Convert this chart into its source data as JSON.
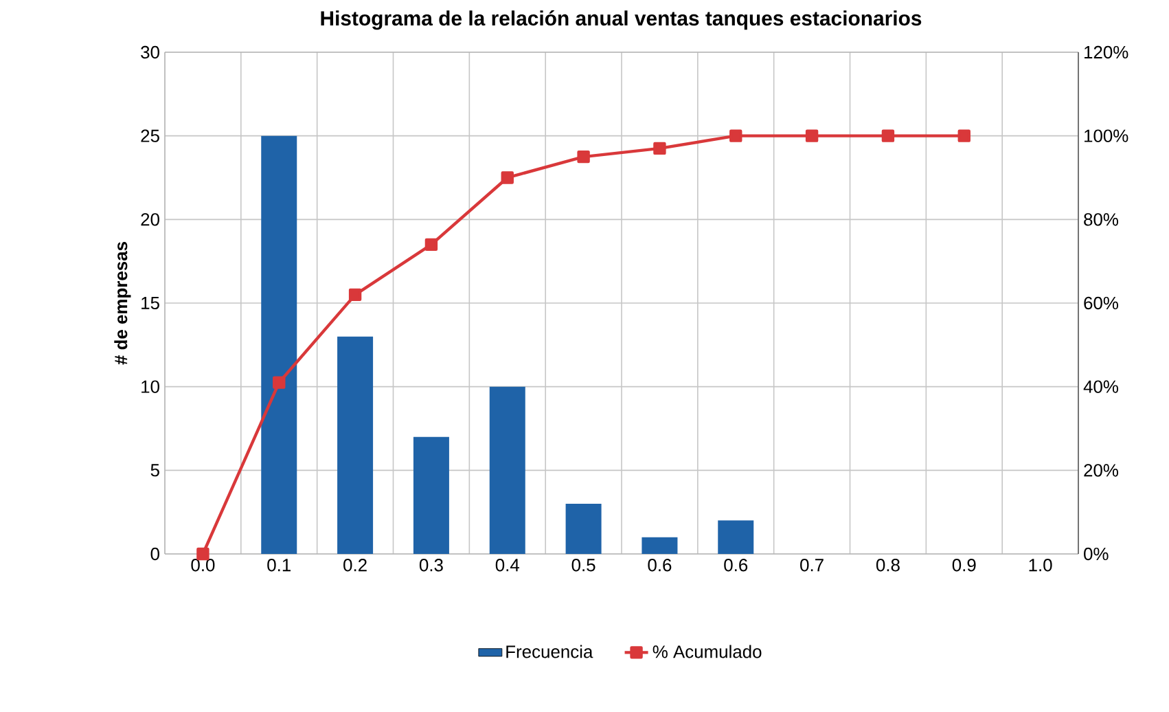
{
  "chart_data": {
    "type": "bar",
    "title": "Histograma de la relación anual ventas tanques estacionarios",
    "ylabel": "# de empresas",
    "categories": [
      "0.0",
      "0.1",
      "0.2",
      "0.3",
      "0.4",
      "0.5",
      "0.6",
      "0.6",
      "0.7",
      "0.8",
      "0.9",
      "1.0"
    ],
    "series": [
      {
        "name": "Frecuencia",
        "color": "#1f63a8",
        "values": [
          0,
          25,
          13,
          7,
          10,
          3,
          1,
          2,
          0,
          0,
          0,
          0
        ]
      },
      {
        "name": "% Acumulado",
        "type": "line",
        "axis": "y2",
        "color": "#d9383a",
        "marker": "square",
        "values": [
          0,
          41,
          62,
          74,
          90,
          95,
          97,
          100,
          100,
          100,
          100,
          null
        ]
      }
    ],
    "ylim": [
      0,
      30
    ],
    "yticks": [
      0,
      5,
      10,
      15,
      20,
      25,
      30
    ],
    "y2lim": [
      0,
      120
    ],
    "y2ticks": [
      {
        "value": 0,
        "label": "0%"
      },
      {
        "value": 20,
        "label": "20%"
      },
      {
        "value": 40,
        "label": "40%"
      },
      {
        "value": 60,
        "label": "60%"
      },
      {
        "value": 80,
        "label": "80%"
      },
      {
        "value": 100,
        "label": "100%"
      },
      {
        "value": 120,
        "label": "120%"
      }
    ],
    "grid": true,
    "legend": "bottom"
  }
}
